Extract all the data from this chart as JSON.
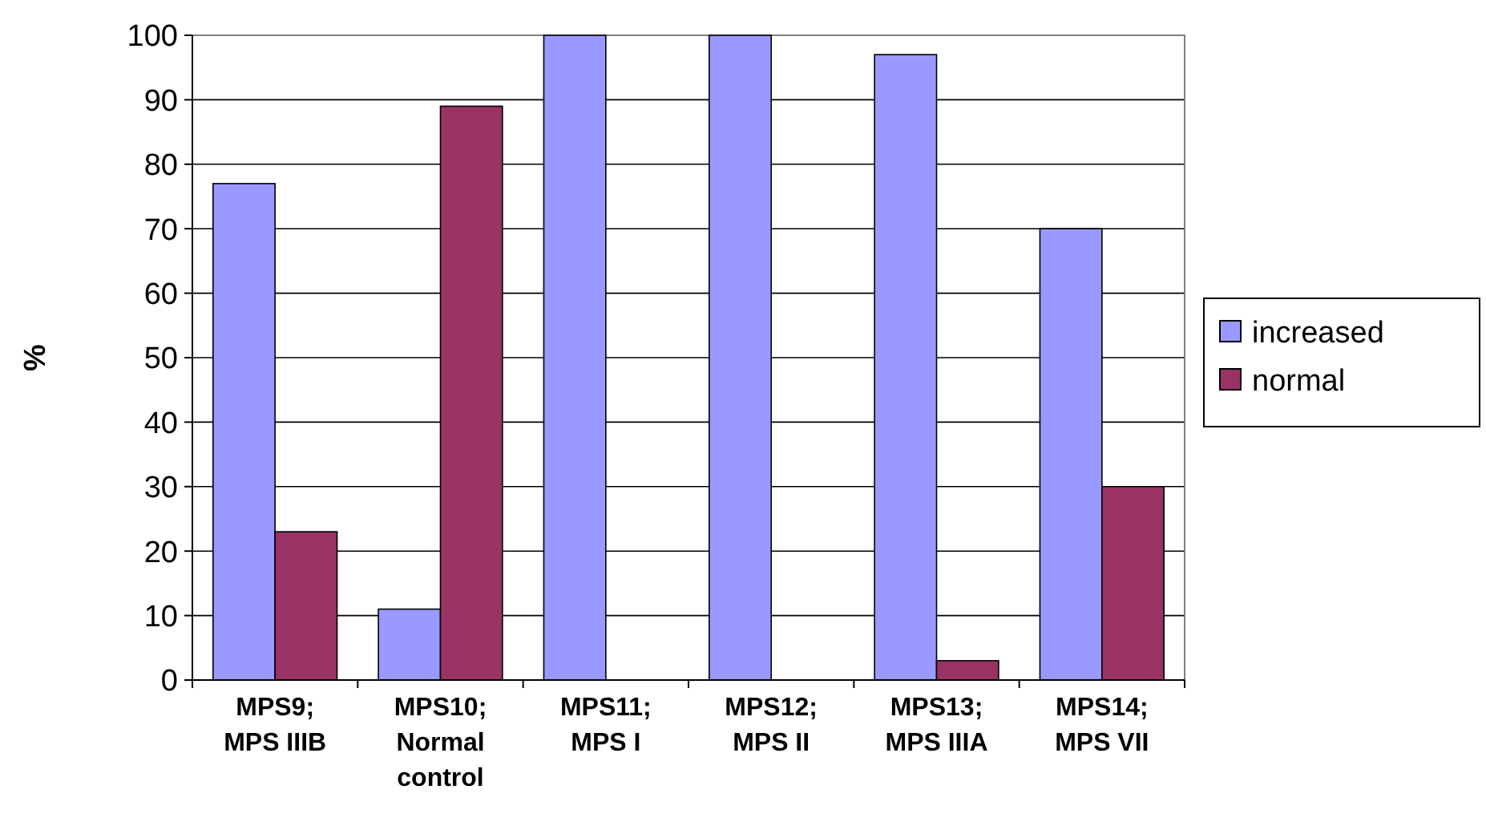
{
  "chart_data": {
    "type": "bar",
    "ylabel": "%",
    "categories": [
      "MPS9;\nMPS IIIB",
      "MPS10;\nNormal\ncontrol",
      "MPS11;\nMPS I",
      "MPS12;\nMPS II",
      "MPS13;\nMPS IIIA",
      "MPS14;\nMPS VII"
    ],
    "series": [
      {
        "name": "increased",
        "color": "#9999ff",
        "values": [
          77,
          11,
          100,
          100,
          97,
          70
        ]
      },
      {
        "name": "normal",
        "color": "#993366",
        "values": [
          23,
          89,
          0,
          0,
          3,
          30
        ]
      }
    ],
    "ylim": [
      0,
      100
    ],
    "yticks": [
      0,
      10,
      20,
      30,
      40,
      50,
      60,
      70,
      80,
      90,
      100
    ],
    "grid": "y",
    "legend": "right"
  }
}
